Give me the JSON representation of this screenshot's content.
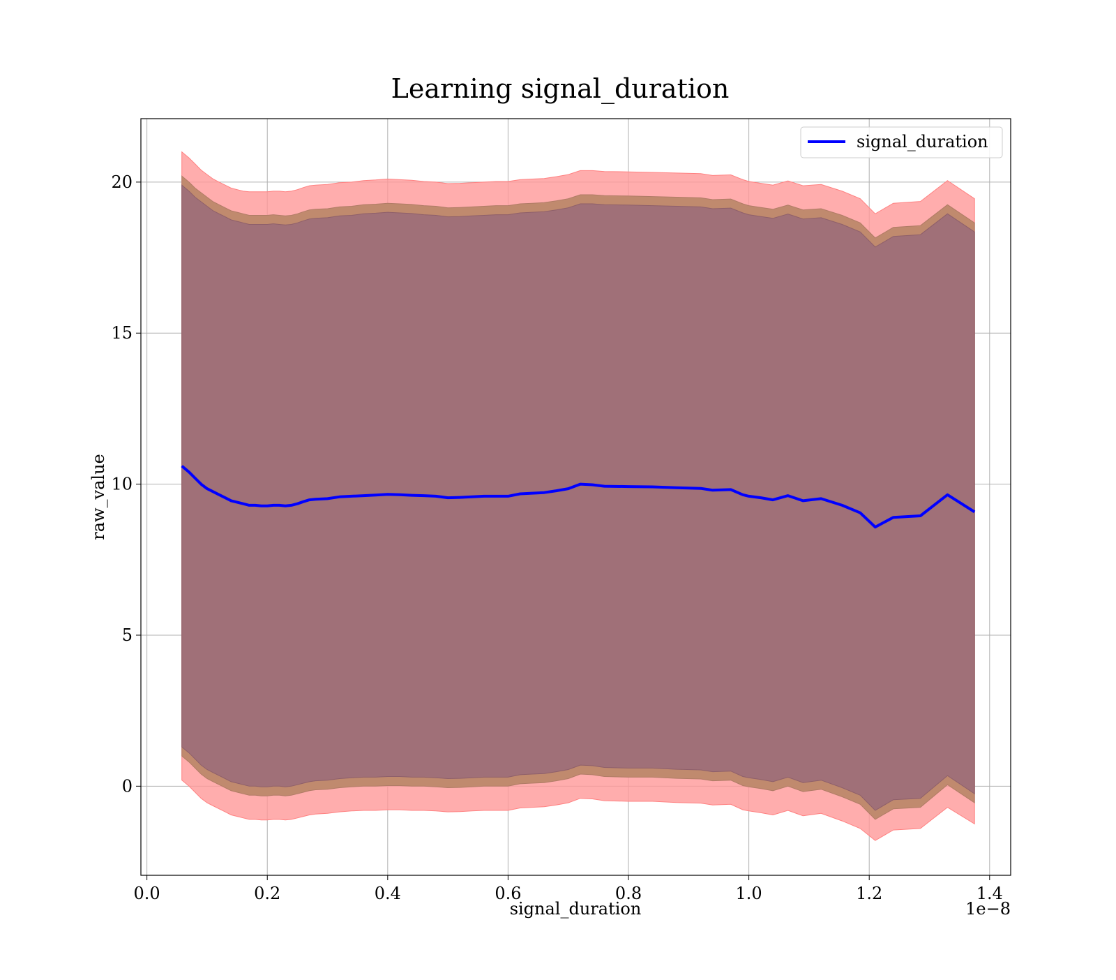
{
  "chart_data": {
    "type": "line",
    "title": "Learning signal_duration",
    "xlabel": "signal_duration",
    "ylabel": "raw_value",
    "x_offset_label": "1e−8",
    "xlim": [
      -0.01,
      1.435
    ],
    "ylim": [
      -2.95,
      22.1
    ],
    "x_ticks": [
      0.0,
      0.2,
      0.4,
      0.6,
      0.8,
      1.0,
      1.2,
      1.4
    ],
    "x_tick_labels": [
      "0.0",
      "0.2",
      "0.4",
      "0.6",
      "0.8",
      "1.0",
      "1.2",
      "1.4"
    ],
    "y_ticks": [
      0,
      5,
      10,
      15,
      20
    ],
    "y_tick_labels": [
      "0",
      "5",
      "10",
      "15",
      "20"
    ],
    "grid": true,
    "legend_position": "upper-right",
    "colors": {
      "line": "#0000ff",
      "band_outer": "#ff9999",
      "band_middle": "#c08a6e",
      "band_inner": "#a07078",
      "grid": "#b0b0b0"
    },
    "series": [
      {
        "name": "signal_duration",
        "x": [
          0.058,
          0.07,
          0.08,
          0.09,
          0.1,
          0.11,
          0.12,
          0.13,
          0.14,
          0.15,
          0.16,
          0.17,
          0.18,
          0.19,
          0.2,
          0.21,
          0.22,
          0.23,
          0.24,
          0.25,
          0.26,
          0.27,
          0.28,
          0.3,
          0.32,
          0.34,
          0.36,
          0.38,
          0.4,
          0.42,
          0.44,
          0.46,
          0.48,
          0.5,
          0.52,
          0.54,
          0.56,
          0.58,
          0.6,
          0.62,
          0.64,
          0.66,
          0.68,
          0.7,
          0.72,
          0.74,
          0.76,
          0.8,
          0.84,
          0.88,
          0.92,
          0.94,
          0.97,
          0.99,
          1.0,
          1.02,
          1.04,
          1.065,
          1.09,
          1.12,
          1.155,
          1.185,
          1.21,
          1.24,
          1.285,
          1.33,
          1.375
        ],
        "mean": [
          10.6,
          10.4,
          10.2,
          10.0,
          9.85,
          9.75,
          9.65,
          9.55,
          9.45,
          9.4,
          9.35,
          9.3,
          9.3,
          9.28,
          9.28,
          9.3,
          9.3,
          9.28,
          9.3,
          9.35,
          9.42,
          9.48,
          9.5,
          9.52,
          9.58,
          9.6,
          9.62,
          9.64,
          9.66,
          9.65,
          9.63,
          9.62,
          9.6,
          9.55,
          9.56,
          9.58,
          9.6,
          9.6,
          9.6,
          9.68,
          9.7,
          9.72,
          9.78,
          9.85,
          10.0,
          9.98,
          9.93,
          9.92,
          9.91,
          9.88,
          9.86,
          9.8,
          9.82,
          9.65,
          9.6,
          9.55,
          9.48,
          9.62,
          9.45,
          9.52,
          9.3,
          9.05,
          8.58,
          8.9,
          8.95,
          9.65,
          9.08
        ],
        "inner_upper": [
          19.9,
          19.7,
          19.5,
          19.35,
          19.2,
          19.05,
          18.95,
          18.85,
          18.75,
          18.7,
          18.65,
          18.6,
          18.6,
          18.6,
          18.6,
          18.62,
          18.6,
          18.58,
          18.6,
          18.65,
          18.72,
          18.78,
          18.8,
          18.82,
          18.88,
          18.9,
          18.95,
          18.97,
          19.0,
          18.98,
          18.96,
          18.92,
          18.9,
          18.85,
          18.86,
          18.88,
          18.9,
          18.92,
          18.92,
          18.98,
          19.0,
          19.02,
          19.08,
          19.15,
          19.28,
          19.28,
          19.25,
          19.24,
          19.22,
          19.2,
          19.18,
          19.12,
          19.14,
          18.98,
          18.92,
          18.86,
          18.8,
          18.94,
          18.78,
          18.82,
          18.6,
          18.35,
          17.85,
          18.2,
          18.26,
          18.95,
          18.35
        ],
        "inner_lower": [
          1.3,
          1.1,
          0.9,
          0.7,
          0.55,
          0.45,
          0.35,
          0.25,
          0.15,
          0.1,
          0.05,
          0.0,
          0.0,
          -0.02,
          -0.02,
          0.0,
          0.0,
          -0.02,
          0.0,
          0.05,
          0.1,
          0.15,
          0.18,
          0.2,
          0.25,
          0.28,
          0.3,
          0.3,
          0.32,
          0.32,
          0.3,
          0.3,
          0.28,
          0.25,
          0.26,
          0.28,
          0.3,
          0.3,
          0.3,
          0.38,
          0.4,
          0.42,
          0.48,
          0.55,
          0.7,
          0.68,
          0.62,
          0.6,
          0.6,
          0.56,
          0.54,
          0.48,
          0.5,
          0.32,
          0.28,
          0.22,
          0.15,
          0.3,
          0.12,
          0.2,
          -0.05,
          -0.3,
          -0.8,
          -0.45,
          -0.4,
          0.35,
          -0.25
        ],
        "middle_upper": [
          20.2,
          20.0,
          19.8,
          19.65,
          19.5,
          19.35,
          19.25,
          19.15,
          19.05,
          19.0,
          18.95,
          18.9,
          18.9,
          18.9,
          18.9,
          18.92,
          18.9,
          18.88,
          18.9,
          18.95,
          19.02,
          19.08,
          19.1,
          19.12,
          19.18,
          19.2,
          19.25,
          19.27,
          19.3,
          19.28,
          19.26,
          19.22,
          19.2,
          19.15,
          19.16,
          19.18,
          19.2,
          19.22,
          19.22,
          19.28,
          19.3,
          19.32,
          19.38,
          19.45,
          19.58,
          19.58,
          19.55,
          19.54,
          19.52,
          19.5,
          19.48,
          19.42,
          19.44,
          19.28,
          19.22,
          19.16,
          19.1,
          19.24,
          19.08,
          19.12,
          18.9,
          18.65,
          18.15,
          18.5,
          18.56,
          19.25,
          18.65
        ],
        "middle_lower": [
          1.0,
          0.8,
          0.6,
          0.4,
          0.25,
          0.15,
          0.05,
          -0.05,
          -0.15,
          -0.2,
          -0.25,
          -0.3,
          -0.3,
          -0.32,
          -0.32,
          -0.3,
          -0.3,
          -0.32,
          -0.3,
          -0.25,
          -0.2,
          -0.15,
          -0.12,
          -0.1,
          -0.05,
          -0.02,
          0.0,
          0.0,
          0.02,
          0.02,
          0.0,
          0.0,
          -0.02,
          -0.05,
          -0.04,
          -0.02,
          0.0,
          0.0,
          0.0,
          0.08,
          0.1,
          0.12,
          0.18,
          0.25,
          0.4,
          0.38,
          0.32,
          0.3,
          0.3,
          0.26,
          0.24,
          0.18,
          0.2,
          0.02,
          -0.02,
          -0.08,
          -0.15,
          0.0,
          -0.18,
          -0.1,
          -0.35,
          -0.6,
          -1.1,
          -0.75,
          -0.7,
          0.05,
          -0.55
        ],
        "outer_upper": [
          21.0,
          20.8,
          20.6,
          20.4,
          20.25,
          20.1,
          20.0,
          19.9,
          19.8,
          19.75,
          19.7,
          19.68,
          19.68,
          19.68,
          19.68,
          19.7,
          19.7,
          19.68,
          19.7,
          19.75,
          19.82,
          19.88,
          19.9,
          19.92,
          19.98,
          20.0,
          20.05,
          20.07,
          20.1,
          20.08,
          20.06,
          20.02,
          20.0,
          19.95,
          19.96,
          19.98,
          20.0,
          20.02,
          20.02,
          20.08,
          20.1,
          20.12,
          20.18,
          20.25,
          20.38,
          20.38,
          20.35,
          20.34,
          20.32,
          20.3,
          20.28,
          20.22,
          20.24,
          20.08,
          20.02,
          19.96,
          19.9,
          20.04,
          19.88,
          19.92,
          19.7,
          19.45,
          18.95,
          19.3,
          19.36,
          20.05,
          19.45
        ],
        "outer_lower": [
          0.2,
          0.0,
          -0.2,
          -0.4,
          -0.55,
          -0.65,
          -0.75,
          -0.85,
          -0.95,
          -1.0,
          -1.05,
          -1.1,
          -1.1,
          -1.12,
          -1.12,
          -1.1,
          -1.1,
          -1.12,
          -1.1,
          -1.05,
          -1.0,
          -0.95,
          -0.92,
          -0.9,
          -0.85,
          -0.82,
          -0.8,
          -0.8,
          -0.78,
          -0.78,
          -0.8,
          -0.8,
          -0.82,
          -0.85,
          -0.84,
          -0.82,
          -0.8,
          -0.8,
          -0.8,
          -0.72,
          -0.7,
          -0.68,
          -0.62,
          -0.55,
          -0.4,
          -0.42,
          -0.48,
          -0.5,
          -0.5,
          -0.54,
          -0.56,
          -0.62,
          -0.6,
          -0.78,
          -0.82,
          -0.88,
          -0.95,
          -0.8,
          -0.98,
          -0.9,
          -1.15,
          -1.4,
          -1.8,
          -1.45,
          -1.4,
          -0.7,
          -1.25
        ]
      }
    ]
  }
}
